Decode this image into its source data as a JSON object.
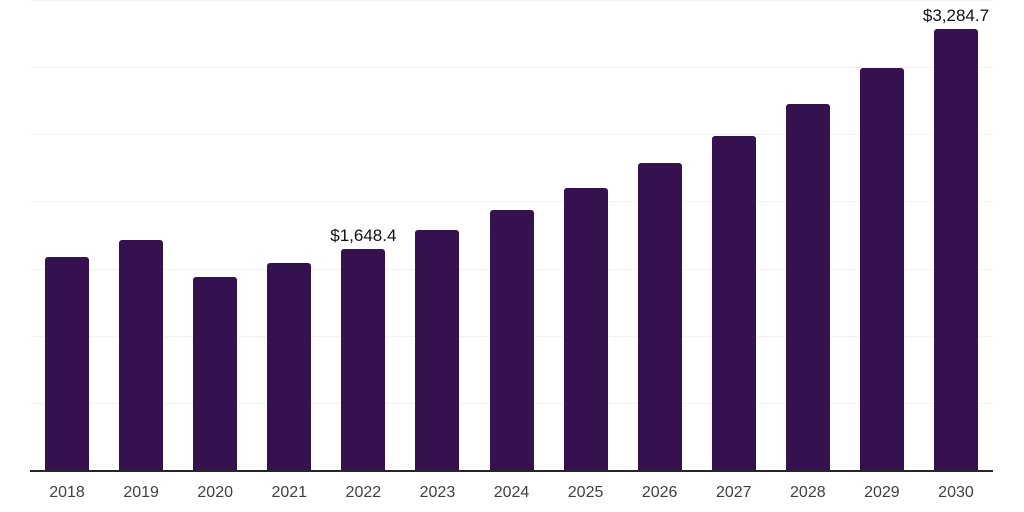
{
  "chart_data": {
    "type": "bar",
    "title": "",
    "xlabel": "",
    "ylabel": "",
    "categories": [
      "2018",
      "2019",
      "2020",
      "2021",
      "2022",
      "2023",
      "2024",
      "2025",
      "2026",
      "2027",
      "2028",
      "2029",
      "2030"
    ],
    "values": [
      1590,
      1711,
      1434,
      1538,
      1648.4,
      1786,
      1937,
      2100,
      2288,
      2490,
      2728,
      2993,
      3284.7
    ],
    "point_labels": {
      "2022": "$1,648.4",
      "2030": "$3,284.7"
    },
    "ylim": [
      0,
      3500
    ],
    "grid_step": 500,
    "grid": "horizontal",
    "legend_position": "none",
    "y_axis_tick_labels": "none",
    "colors": {
      "bar": "#36114F",
      "axis_line": "#262626",
      "gridline": "#f2f2f2",
      "tick_label": "#404040",
      "data_label": "#111111",
      "background": "#ffffff"
    }
  }
}
